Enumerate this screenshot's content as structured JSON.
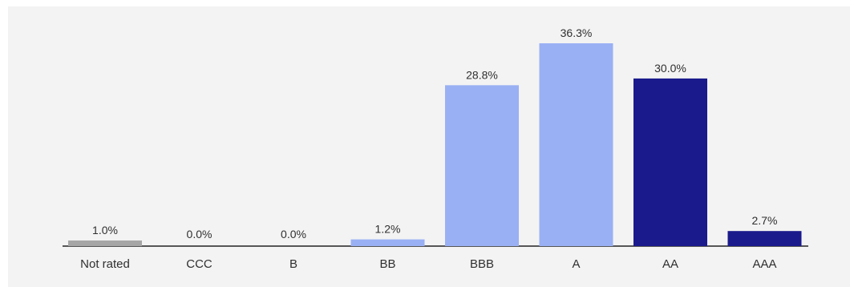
{
  "chart_data": {
    "type": "bar",
    "categories": [
      "Not rated",
      "CCC",
      "B",
      "BB",
      "BBB",
      "A",
      "AA",
      "AAA"
    ],
    "values": [
      1.0,
      0.0,
      0.0,
      1.2,
      28.8,
      36.3,
      30.0,
      2.7
    ],
    "value_labels": [
      "1.0%",
      "0.0%",
      "0.0%",
      "1.2%",
      "28.8%",
      "36.3%",
      "30.0%",
      "2.7%"
    ],
    "colors": [
      "#a6a6a6",
      "#1c1c7f",
      "#1c1c7f",
      "#9ab0f4",
      "#9ab0f4",
      "#9ab0f4",
      "#1a1a8c",
      "#1a1a8c"
    ],
    "ylim": [
      0,
      36.3
    ],
    "grid": false,
    "title": "",
    "xlabel": "",
    "ylabel": ""
  }
}
